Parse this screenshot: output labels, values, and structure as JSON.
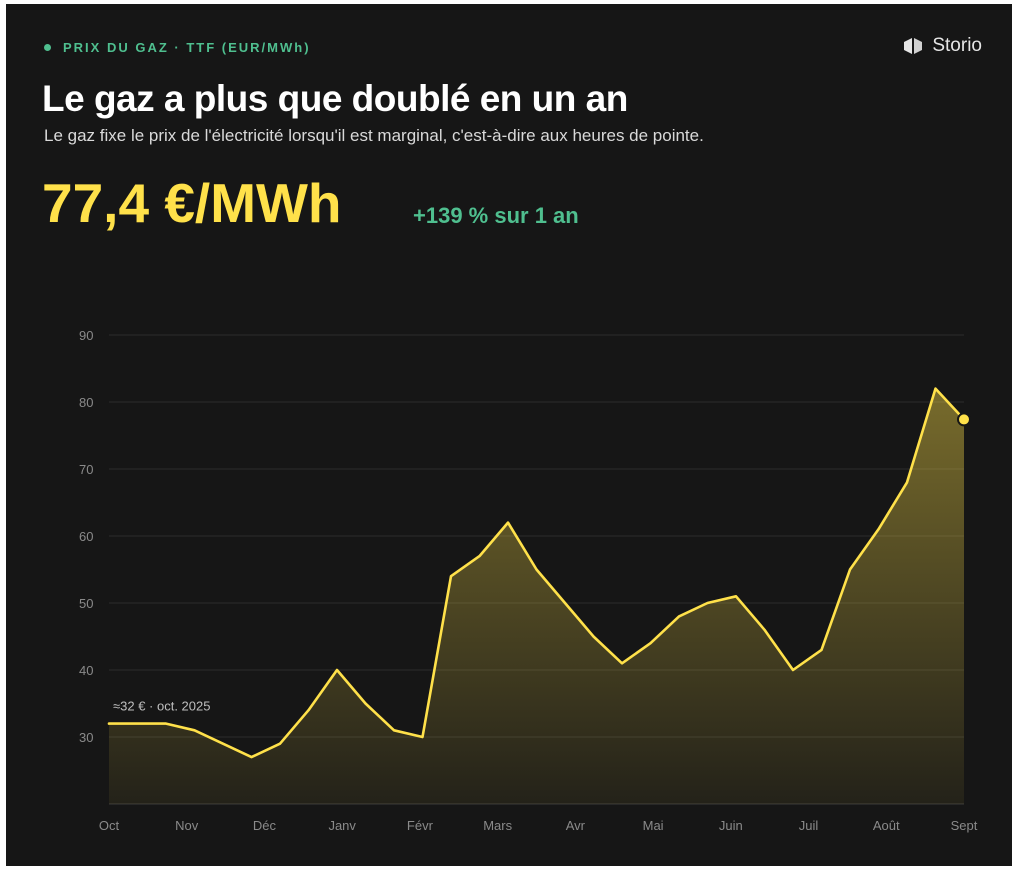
{
  "header": {
    "eyebrow": "PRIX DU GAZ · TTF (EUR/MWh)",
    "brand": "Storio",
    "title": "Le gaz a plus que doublé en un an",
    "subtitle": "Le gaz fixe le prix de l'électricité lorsqu'il est marginal, c'est-à-dire aux heures de pointe."
  },
  "kpi": {
    "value": "77,4 €/MWh",
    "change": "+139 % sur 1 an"
  },
  "colors": {
    "accent": "#ffe14a",
    "positive": "#4fbf8f",
    "background": "#161616",
    "grid": "#2c2c2c",
    "text_muted": "#8a8a8a"
  },
  "icons": {
    "brand": "storio-logo-icon"
  },
  "chart_data": {
    "type": "area",
    "title": "",
    "xlabel": "",
    "ylabel": "",
    "ylim": [
      20,
      90
    ],
    "yticks": [
      30,
      40,
      50,
      60,
      70,
      80,
      90
    ],
    "grid": true,
    "x_tick_labels": [
      "Oct",
      "Nov",
      "Déc",
      "Janv",
      "Févr",
      "Mars",
      "Avr",
      "Mai",
      "Juin",
      "Juil",
      "Août",
      "Sept"
    ],
    "series": [
      {
        "values": [
          32,
          32,
          32,
          31,
          29,
          27,
          29,
          34,
          40,
          35,
          31,
          30,
          54,
          57,
          62,
          55,
          50,
          45,
          41,
          44,
          48,
          50,
          51,
          46,
          40,
          43,
          55,
          61,
          68,
          82,
          77.4
        ]
      }
    ],
    "annotations": [
      {
        "label": "≈32 € · oct. 2025",
        "point_index": 0
      }
    ],
    "last_point_marker": true
  }
}
